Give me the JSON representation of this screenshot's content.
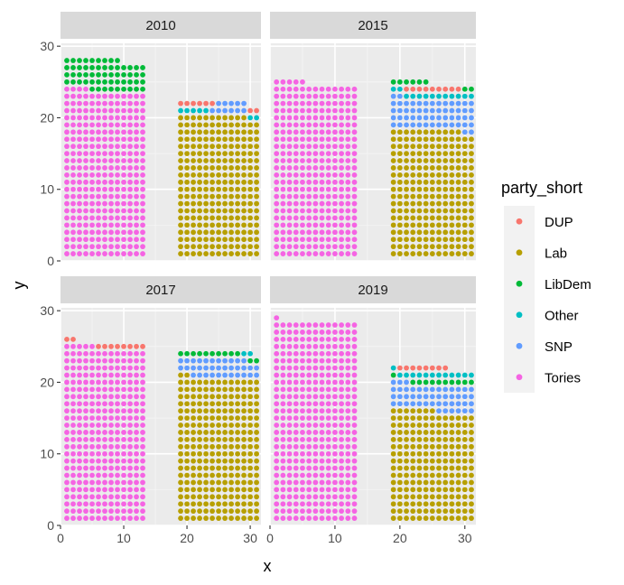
{
  "chart_data": {
    "type": "scatter",
    "subtype": "waffle (dot-grid), faceted by year",
    "title": "",
    "xlabel": "x",
    "ylabel": "y",
    "xlim": [
      0,
      31.7
    ],
    "ylim": [
      0,
      30.4
    ],
    "x_ticks": [
      0,
      10,
      20,
      30
    ],
    "y_ticks": [
      0,
      10,
      20,
      30
    ],
    "grid": true,
    "legend": {
      "title": "party_short",
      "placement": "right",
      "entries": [
        {
          "name": "DUP",
          "color": "#F8766D"
        },
        {
          "name": "Lab",
          "color": "#B79F00"
        },
        {
          "name": "LibDem",
          "color": "#00BA38"
        },
        {
          "name": "Other",
          "color": "#00BFC4"
        },
        {
          "name": "SNP",
          "color": "#619CFF"
        },
        {
          "name": "Tories",
          "color": "#F564E3"
        }
      ]
    },
    "grid_spec": {
      "columns_per_block": 13,
      "block_x_start": [
        1,
        19
      ],
      "row_y_start": 1,
      "row_step": 1
    },
    "facets": [
      {
        "label": "2010",
        "blocks": [
          {
            "x_start": 1,
            "rows": [
              {
                "party": "Tories",
                "count": 303
              },
              {
                "party": "LibDem",
                "count": 57
              }
            ]
          },
          {
            "x_start": 19,
            "rows": [
              {
                "party": "Lab",
                "count": 258
              },
              {
                "party": "Other",
                "count": 7
              },
              {
                "party": "SNP",
                "count": 6
              },
              {
                "party": "DUP",
                "count": 8
              },
              {
                "party": "SNP",
                "count": 5
              }
            ]
          }
        ]
      },
      {
        "label": "2015",
        "blocks": [
          {
            "x_start": 1,
            "rows": [
              {
                "party": "Tories",
                "count": 317
              }
            ]
          },
          {
            "x_start": 19,
            "rows": [
              {
                "party": "Lab",
                "count": 232
              },
              {
                "party": "SNP",
                "count": 56
              },
              {
                "party": "Other",
                "count": 13
              },
              {
                "party": "DUP",
                "count": 9
              },
              {
                "party": "LibDem",
                "count": 8
              }
            ]
          }
        ]
      },
      {
        "label": "2017",
        "blocks": [
          {
            "x_start": 1,
            "rows": [
              {
                "party": "Tories",
                "count": 317
              },
              {
                "party": "DUP",
                "count": 10
              }
            ]
          },
          {
            "x_start": 19,
            "rows": [
              {
                "party": "Lab",
                "count": 262
              },
              {
                "party": "SNP",
                "count": 35
              },
              {
                "party": "LibDem",
                "count": 12
              },
              {
                "party": "Other",
                "count": 2
              }
            ]
          }
        ]
      },
      {
        "label": "2019",
        "blocks": [
          {
            "x_start": 1,
            "rows": [
              {
                "party": "Tories",
                "count": 365
              }
            ]
          },
          {
            "x_start": 19,
            "rows": [
              {
                "party": "Lab",
                "count": 202
              },
              {
                "party": "SNP",
                "count": 48
              },
              {
                "party": "LibDem",
                "count": 11
              },
              {
                "party": "Other",
                "count": 13
              },
              {
                "party": "DUP",
                "count": 8
              }
            ]
          }
        ]
      }
    ]
  }
}
